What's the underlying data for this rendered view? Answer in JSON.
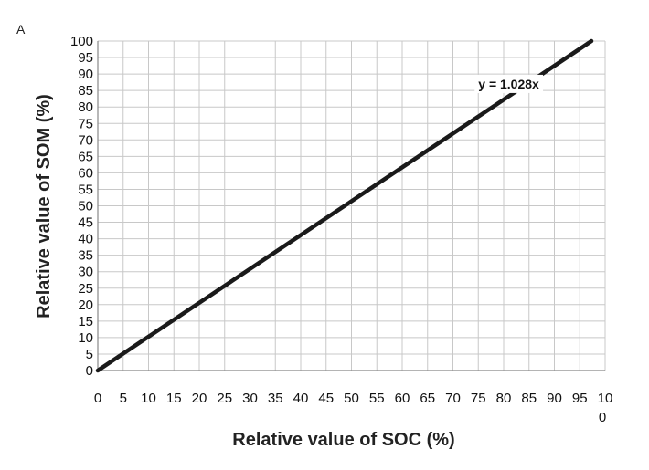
{
  "panel_label": "A",
  "chart_data": {
    "type": "line",
    "title": "",
    "xlabel": "Relative value of SOC (%)",
    "ylabel": "Relative value of SOM (%)",
    "xlim": [
      0,
      100
    ],
    "ylim": [
      0,
      100
    ],
    "x_ticks": [
      0,
      5,
      10,
      15,
      20,
      25,
      30,
      35,
      40,
      45,
      50,
      55,
      60,
      65,
      70,
      75,
      80,
      85,
      90,
      95,
      100
    ],
    "y_ticks": [
      0,
      5,
      10,
      15,
      20,
      25,
      30,
      35,
      40,
      45,
      50,
      55,
      60,
      65,
      70,
      75,
      80,
      85,
      90,
      95,
      100
    ],
    "grid": true,
    "legend": "none",
    "series": [
      {
        "x": [
          0,
          97.3
        ],
        "y": [
          0,
          100
        ]
      }
    ],
    "annotations": [
      {
        "text": "y = 1.028x",
        "x": 81,
        "y": 87
      }
    ],
    "colors": {
      "line": "#1a1a1a",
      "grid": "#c8c8c8",
      "axis": "#888888"
    }
  }
}
